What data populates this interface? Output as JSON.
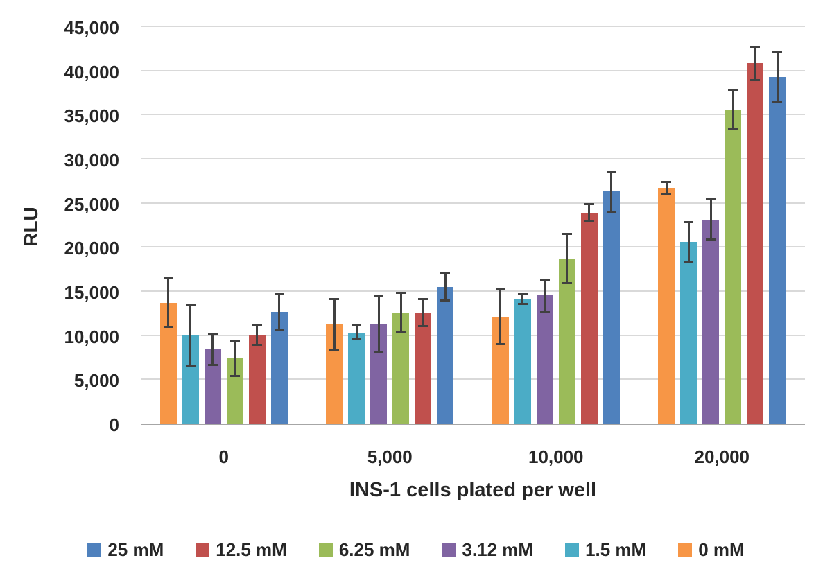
{
  "chart_data": {
    "type": "bar",
    "title": "",
    "ylabel": "RLU",
    "xlabel": "INS-1 cells plated per well",
    "categories": [
      "0",
      "5,000",
      "10,000",
      "20,000"
    ],
    "ylim": [
      0,
      45000
    ],
    "ytick_step": 5000,
    "ytick_labels": [
      "0",
      "5,000",
      "10,000",
      "15,000",
      "20,000",
      "25,000",
      "30,000",
      "35,000",
      "40,000",
      "45,000"
    ],
    "grid": "horizontal",
    "legend_position": "bottom",
    "error_bars": "symmetric, dark gray with caps",
    "bar_order_left_to_right": [
      "0 mM",
      "1.5 mM",
      "3.12 mM",
      "6.25 mM",
      "12.5 mM",
      "25 mM"
    ],
    "series": [
      {
        "name": "25 mM",
        "color": "#4F81BD",
        "values": [
          12650,
          15500,
          26300,
          39300
        ],
        "errors": [
          2200,
          1700,
          2400,
          2900
        ]
      },
      {
        "name": "12.5 mM",
        "color": "#C0504D",
        "values": [
          10050,
          12600,
          23900,
          40800
        ],
        "errors": [
          1250,
          1650,
          1050,
          2000
        ]
      },
      {
        "name": "6.25 mM",
        "color": "#9BBB59",
        "values": [
          7350,
          12600,
          18700,
          35600
        ],
        "errors": [
          2100,
          2300,
          2900,
          2350
        ]
      },
      {
        "name": "3.12 mM",
        "color": "#8064A2",
        "values": [
          8400,
          11200,
          14500,
          23100
        ],
        "errors": [
          1850,
          3300,
          1950,
          2400
        ]
      },
      {
        "name": "1.5 mM",
        "color": "#4BACC6",
        "values": [
          10000,
          10300,
          14100,
          20600
        ],
        "errors": [
          3550,
          900,
          650,
          2350
        ]
      },
      {
        "name": "0 mM",
        "color": "#F79646",
        "values": [
          13700,
          11200,
          12100,
          26700
        ],
        "errors": [
          2900,
          3050,
          3200,
          800
        ]
      }
    ],
    "colors": {
      "error_bar": "#404040",
      "gridline": "#D9D9D9",
      "axis_line": "#A6A6A6",
      "text": "#262626",
      "background": "#FFFFFF"
    }
  }
}
